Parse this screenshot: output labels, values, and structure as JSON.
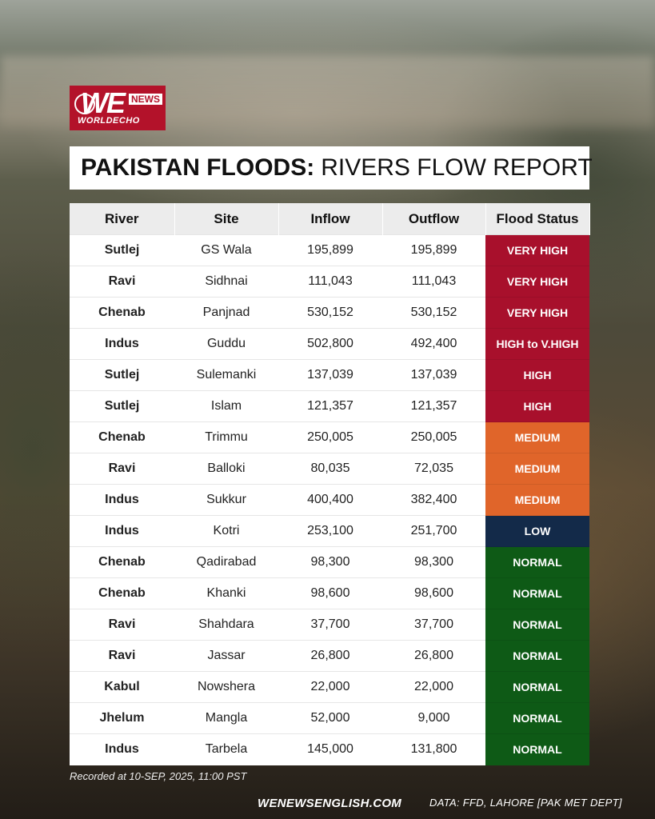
{
  "logo": {
    "main": "WE",
    "news": "NEWS",
    "sub": "WORLDECHO"
  },
  "title": {
    "bold": "PAKISTAN FLOODS:",
    "light": "RIVERS FLOW REPORT"
  },
  "table": {
    "headers": [
      "River",
      "Site",
      "Inflow",
      "Outflow",
      "Flood Status"
    ],
    "rows": [
      [
        "Sutlej",
        "GS Wala",
        "195,899",
        "195,899",
        "VERY HIGH"
      ],
      [
        "Ravi",
        "Sidhnai",
        "111,043",
        "111,043",
        "VERY HIGH"
      ],
      [
        "Chenab",
        "Panjnad",
        "530,152",
        "530,152",
        "VERY HIGH"
      ],
      [
        "Indus",
        "Guddu",
        "502,800",
        "492,400",
        "HIGH to V.HIGH"
      ],
      [
        "Sutlej",
        "Sulemanki",
        "137,039",
        "137,039",
        "HIGH"
      ],
      [
        "Sutlej",
        "Islam",
        "121,357",
        "121,357",
        "HIGH"
      ],
      [
        "Chenab",
        "Trimmu",
        "250,005",
        "250,005",
        "MEDIUM"
      ],
      [
        "Ravi",
        "Balloki",
        "80,035",
        "72,035",
        "MEDIUM"
      ],
      [
        "Indus",
        "Sukkur",
        "400,400",
        "382,400",
        "MEDIUM"
      ],
      [
        "Indus",
        "Kotri",
        "253,100",
        "251,700",
        "LOW"
      ],
      [
        "Chenab",
        "Qadirabad",
        "98,300",
        "98,300",
        "NORMAL"
      ],
      [
        "Chenab",
        "Khanki",
        "98,600",
        "98,600",
        "NORMAL"
      ],
      [
        "Ravi",
        "Shahdara",
        "37,700",
        "37,700",
        "NORMAL"
      ],
      [
        "Ravi",
        "Jassar",
        "26,800",
        "26,800",
        "NORMAL"
      ],
      [
        "Kabul",
        "Nowshera",
        "22,000",
        "22,000",
        "NORMAL"
      ],
      [
        "Jhelum",
        "Mangla",
        "52,000",
        "9,000",
        "NORMAL"
      ],
      [
        "Indus",
        "Tarbela",
        "145,000",
        "131,800",
        "NORMAL"
      ]
    ]
  },
  "status_colors": {
    "VERY HIGH": "#a8102c",
    "HIGH to V.HIGH": "#a8102c",
    "HIGH": "#a8102c",
    "MEDIUM": "#e0652a",
    "LOW": "#132a49",
    "NORMAL": "#0e5a16"
  },
  "footer": {
    "recorded": "Recorded at 10-SEP, 2025, 11:00 PST",
    "site": "WENEWSENGLISH.COM",
    "data_source": "DATA: FFD, LAHORE [PAK MET DEPT]"
  }
}
